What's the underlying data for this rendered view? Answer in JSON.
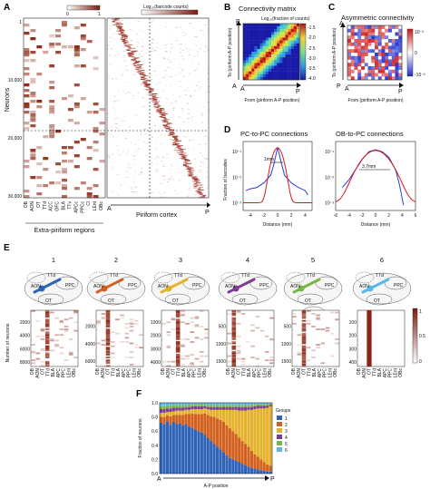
{
  "panels": {
    "a": {
      "label": "A",
      "colorbar_title": "Log₁₀(barcode counts)",
      "colorbar_ticks": [
        "0",
        "1"
      ],
      "ylabel": "Neurons",
      "yticks": [
        "1",
        "10,000",
        "20,000",
        "30,000"
      ],
      "regions": [
        "OB",
        "AON",
        "OT",
        "TTd",
        "ACC",
        "Cl",
        "BLA",
        "APC",
        "PPC",
        "LEnt",
        "OBc",
        "cOB",
        "rdPC",
        "Cl"
      ],
      "region_labels": [
        "OB",
        "AON",
        "OT",
        "TTd",
        "ACC",
        "OFC",
        "BLA",
        "TTv",
        "APCc",
        "PPCc",
        "Cl",
        "LEnt",
        "OBc"
      ],
      "group_label": "Extra-piriform regions",
      "right_label": "Piriform cortex",
      "axis_a": "A",
      "axis_p": "P"
    },
    "b": {
      "label": "B",
      "title": "Connectivity matrix",
      "colorbar_title": "Log₁₀(fraction of counts)",
      "colorbar_ticks": [
        "-1.5",
        "-2.0",
        "-2.5",
        "-3.0",
        "-3.5",
        "-4.0"
      ],
      "ylabel": "To (piriform A-P position)",
      "xlabel": "From (piriform A-P position)",
      "corner_a": "A",
      "corner_p": "P"
    },
    "c": {
      "label": "C",
      "title": "Asymmetric connectivity",
      "colorbar_ticks": [
        "10⁻²",
        "0",
        "-10⁻²"
      ],
      "ylabel": "To (piriform A-P position)",
      "xlabel": "From (piriform A-P position)",
      "corner_a": "A",
      "corner_p": "P"
    },
    "d": {
      "label": "D",
      "left_title": "PC-to-PC connections",
      "right_title": "OB-to-PC connections",
      "ylabel": "Fraction of barcodes",
      "xlabel": "Distance (mm)",
      "left_annotation": "1mm",
      "right_annotation": "3.7mm",
      "left_xticks": [
        "-4",
        "-2",
        "0",
        "2",
        "4"
      ],
      "right_xticks": [
        "-6",
        "-4",
        "-2",
        "0",
        "2",
        "4",
        "6"
      ],
      "left_yticks": [
        "10⁻¹",
        "10⁻²",
        "10⁻³"
      ],
      "right_yticks": [
        "10⁻¹",
        "10⁻²",
        "10⁻³"
      ]
    },
    "e": {
      "label": "E",
      "cluster_numbers": [
        "1",
        "2",
        "3",
        "4",
        "5",
        "6"
      ],
      "ylabel": "Number of neurons",
      "colorbar_ticks": [
        "1",
        "0.5",
        "0"
      ],
      "heatmaps": [
        {
          "yticks": [
            "2000",
            "4000",
            "6000",
            "8000"
          ]
        },
        {
          "yticks": [
            "2000",
            "4000",
            "6000"
          ]
        },
        {
          "yticks": [
            "1000",
            "2000",
            "3000",
            "4000"
          ]
        },
        {
          "yticks": [
            "500",
            "1000",
            "1500"
          ]
        },
        {
          "yticks": [
            "500",
            "1000",
            "1500"
          ]
        },
        {
          "yticks": [
            "100",
            "200",
            "300",
            "400"
          ]
        }
      ],
      "xtick_regions": [
        "OB",
        "AON",
        "OT",
        "TTd",
        "BLA",
        "APC",
        "PPC",
        "LEnt",
        "OBc"
      ],
      "brain_labels": [
        "ORB",
        "TTd",
        "AON",
        "OT",
        "APC",
        "PPC",
        "Ent",
        "BLA",
        "PRh",
        "AI",
        "MOB"
      ]
    },
    "f": {
      "label": "F",
      "ylabel": "Fraction of neurons",
      "xlabel": "A-P position",
      "axis_a": "A",
      "axis_p": "P",
      "yticks": [
        "0.0",
        "0.2",
        "0.4",
        "0.6",
        "0.8",
        "1.0"
      ],
      "legend_title": "Groups",
      "legend": [
        "1",
        "2",
        "3",
        "4",
        "5",
        "6"
      ],
      "group_colors": [
        "#2f63b8",
        "#d2601e",
        "#e4b22c",
        "#7d3b91",
        "#7ab54a",
        "#58b9e6"
      ]
    }
  },
  "chart_data": [
    {
      "type": "line",
      "title": "PC-to-PC connections",
      "xlabel": "Distance (mm)",
      "ylabel": "Fraction of barcodes",
      "yscale": "log",
      "xlim": [
        -5,
        5
      ],
      "ylim": [
        0.0005,
        0.25
      ],
      "annotation": "1mm",
      "series": [
        {
          "x": [
            -4.6,
            -4,
            -3,
            -2,
            -1,
            -0.5,
            0,
            0.5,
            1,
            2,
            3,
            4,
            4.4
          ],
          "y": [
            0.003,
            0.0035,
            0.004,
            0.006,
            0.012,
            0.035,
            0.15,
            0.04,
            0.012,
            0.006,
            0.004,
            0.003,
            0.002
          ]
        }
      ]
    },
    {
      "type": "line",
      "title": "OB-to-PC connections",
      "xlabel": "Distance (mm)",
      "yscale": "log",
      "xlim": [
        -6,
        6
      ],
      "ylim": [
        0.0005,
        0.25
      ],
      "annotation": "3.7mm",
      "series": [
        {
          "x": [
            -5,
            -4,
            -3,
            -2,
            -1,
            0,
            1,
            2,
            3,
            3.6,
            4.2
          ],
          "y": [
            0.004,
            0.008,
            0.02,
            0.05,
            0.1,
            0.12,
            0.1,
            0.06,
            0.02,
            0.005,
            0.0008
          ]
        }
      ]
    },
    {
      "type": "bar",
      "stacked": true,
      "xlabel": "A-P position",
      "ylabel": "Fraction of neurons",
      "ylim": [
        0,
        1
      ],
      "legend_title": "Groups",
      "series": [
        {
          "name": "1",
          "values": [
            0.72,
            0.7,
            0.74,
            0.69,
            0.73,
            0.7,
            0.71,
            0.68,
            0.7,
            0.66,
            0.65,
            0.62,
            0.6,
            0.58,
            0.55,
            0.5,
            0.46,
            0.42,
            0.38,
            0.34,
            0.3,
            0.26,
            0.22,
            0.2,
            0.18,
            0.16,
            0.14,
            0.12,
            0.1,
            0.08,
            0.07,
            0.06,
            0.05,
            0.04,
            0.03,
            0.03
          ]
        },
        {
          "name": "2",
          "values": [
            0.08,
            0.1,
            0.08,
            0.12,
            0.1,
            0.13,
            0.12,
            0.15,
            0.14,
            0.18,
            0.2,
            0.22,
            0.24,
            0.26,
            0.3,
            0.33,
            0.35,
            0.38,
            0.4,
            0.42,
            0.43,
            0.42,
            0.42,
            0.4,
            0.38,
            0.35,
            0.32,
            0.3,
            0.28,
            0.24,
            0.2,
            0.18,
            0.15,
            0.12,
            0.1,
            0.08
          ]
        },
        {
          "name": "3",
          "values": [
            0.06,
            0.06,
            0.05,
            0.06,
            0.05,
            0.06,
            0.06,
            0.06,
            0.06,
            0.06,
            0.06,
            0.07,
            0.07,
            0.07,
            0.07,
            0.08,
            0.09,
            0.1,
            0.12,
            0.14,
            0.17,
            0.22,
            0.26,
            0.3,
            0.34,
            0.38,
            0.43,
            0.47,
            0.52,
            0.58,
            0.64,
            0.68,
            0.72,
            0.76,
            0.8,
            0.84
          ]
        },
        {
          "name": "4",
          "values": [
            0.05,
            0.05,
            0.05,
            0.05,
            0.05,
            0.04,
            0.04,
            0.04,
            0.04,
            0.04,
            0.04,
            0.04,
            0.04,
            0.04,
            0.03,
            0.03,
            0.04,
            0.04,
            0.04,
            0.04,
            0.04,
            0.04,
            0.04,
            0.04,
            0.04,
            0.05,
            0.05,
            0.05,
            0.04,
            0.04,
            0.04,
            0.04,
            0.04,
            0.04,
            0.03,
            0.02
          ]
        },
        {
          "name": "5",
          "values": [
            0.04,
            0.04,
            0.04,
            0.04,
            0.04,
            0.04,
            0.04,
            0.04,
            0.03,
            0.03,
            0.03,
            0.03,
            0.03,
            0.03,
            0.03,
            0.03,
            0.03,
            0.03,
            0.03,
            0.03,
            0.03,
            0.03,
            0.03,
            0.03,
            0.03,
            0.03,
            0.03,
            0.03,
            0.03,
            0.03,
            0.03,
            0.02,
            0.02,
            0.02,
            0.02,
            0.02
          ]
        },
        {
          "name": "6",
          "values": [
            0.05,
            0.05,
            0.04,
            0.04,
            0.03,
            0.03,
            0.03,
            0.03,
            0.03,
            0.03,
            0.02,
            0.02,
            0.02,
            0.02,
            0.02,
            0.03,
            0.03,
            0.03,
            0.03,
            0.03,
            0.03,
            0.03,
            0.03,
            0.03,
            0.03,
            0.03,
            0.03,
            0.03,
            0.03,
            0.03,
            0.02,
            0.02,
            0.02,
            0.02,
            0.02,
            0.01
          ]
        }
      ]
    }
  ]
}
